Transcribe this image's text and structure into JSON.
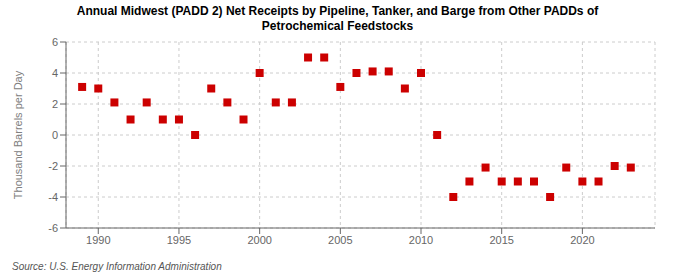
{
  "chart_data": {
    "type": "scatter",
    "title": "Annual Midwest (PADD 2) Net Receipts by Pipeline, Tanker, and Barge from Other PADDs of\nPetrochemical Feedstocks",
    "ylabel": "Thousand Barrels per Day",
    "source": "Source: U.S. Energy Information Administration",
    "x": [
      1989,
      1990,
      1991,
      1992,
      1993,
      1994,
      1995,
      1996,
      1997,
      1998,
      1999,
      2000,
      2001,
      2002,
      2003,
      2004,
      2005,
      2006,
      2007,
      2008,
      2009,
      2010,
      2011,
      2012,
      2013,
      2014,
      2015,
      2016,
      2017,
      2018,
      2019,
      2020,
      2021,
      2022,
      2023
    ],
    "values": [
      3.1,
      3.0,
      2.1,
      1.0,
      2.1,
      1.0,
      1.0,
      0.0,
      3.0,
      2.1,
      1.0,
      4.0,
      2.1,
      2.1,
      5.0,
      5.0,
      3.1,
      4.0,
      4.1,
      4.1,
      3.0,
      4.0,
      0.0,
      -4.0,
      -3.0,
      -2.1,
      -3.0,
      -3.0,
      -3.0,
      -4.0,
      -2.1,
      -3.0,
      -3.0,
      -2.0,
      -2.1
    ],
    "color": "#cc0000",
    "marker": "square",
    "xlim": [
      1988.0,
      2024.5
    ],
    "xticks": [
      1990,
      1995,
      2000,
      2005,
      2010,
      2015,
      2020
    ],
    "ylim": [
      -6,
      6
    ],
    "yticks": [
      -6,
      -4,
      -2,
      0,
      2,
      4,
      6
    ],
    "grid": true
  }
}
